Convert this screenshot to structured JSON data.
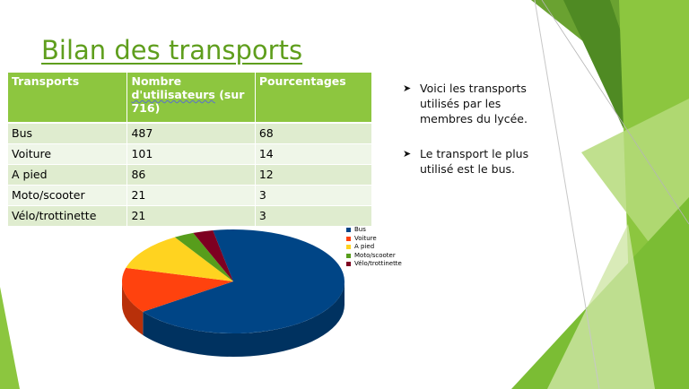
{
  "slide": {
    "title": "Bilan des transports",
    "table": {
      "headers": [
        "Transports",
        "Nombre",
        "d'utilisateurs",
        "(sur 716)",
        "Pourcentages"
      ],
      "rows": [
        [
          "Bus",
          "487",
          "68"
        ],
        [
          "Voiture",
          "101",
          "14"
        ],
        [
          "A pied",
          "86",
          "12"
        ],
        [
          "Moto/scooter",
          "21",
          "3"
        ],
        [
          "Vélo/trottinette",
          "21",
          "3"
        ]
      ]
    },
    "bullets": [
      "Voici les transports utilisés par les membres du lycée.",
      "Le transport le plus utilisé est le bus."
    ],
    "bullet_icon": "arrowhead-bullet-icon"
  },
  "chart_data": {
    "type": "pie",
    "categories": [
      "Bus",
      "Voiture",
      "A pied",
      "Moto/scooter",
      "Vélo/trottinette"
    ],
    "values": [
      487,
      101,
      86,
      21,
      21
    ],
    "colors": [
      "#004586",
      "#ff420e",
      "#ffd320",
      "#579d1c",
      "#7e0021"
    ],
    "legend": "right",
    "title": ""
  },
  "theme": {
    "accent": "#8dc63f",
    "title_color": "#5f9e1d"
  }
}
